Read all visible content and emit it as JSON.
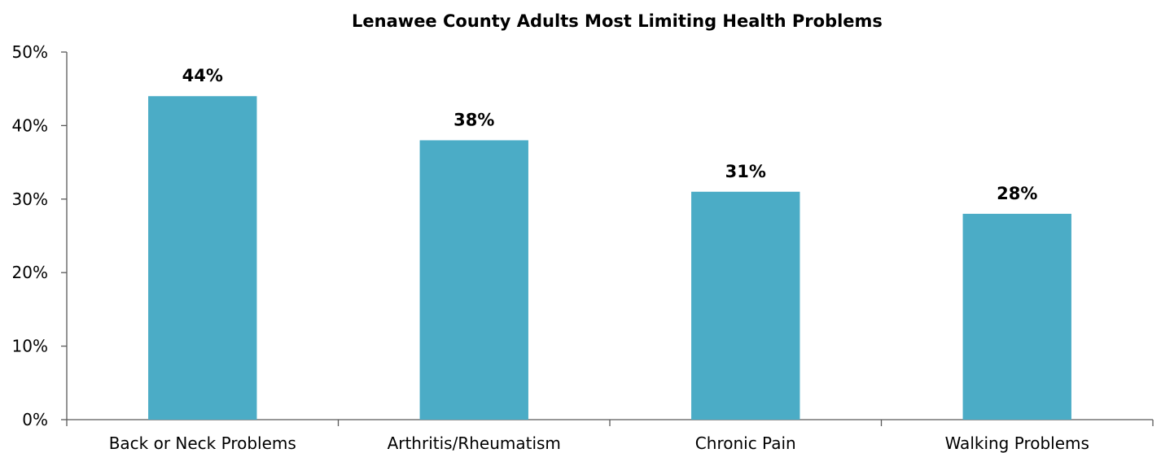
{
  "chart_data": {
    "type": "bar",
    "title": "Lenawee County Adults Most Limiting Health Problems",
    "categories": [
      "Back or Neck Problems",
      "Arthritis/Rheumatism",
      "Chronic Pain",
      "Walking Problems"
    ],
    "values": [
      44,
      38,
      31,
      28
    ],
    "value_labels": [
      "44%",
      "38%",
      "31%",
      "28%"
    ],
    "ylim": [
      0,
      50
    ],
    "yticks": [
      0,
      10,
      20,
      30,
      40,
      50
    ],
    "ytick_labels": [
      "0%",
      "10%",
      "20%",
      "30%",
      "40%",
      "50%"
    ],
    "xlabel": "",
    "ylabel": "",
    "grid": false,
    "legend": "none",
    "bar_color": "#4BACC6"
  }
}
